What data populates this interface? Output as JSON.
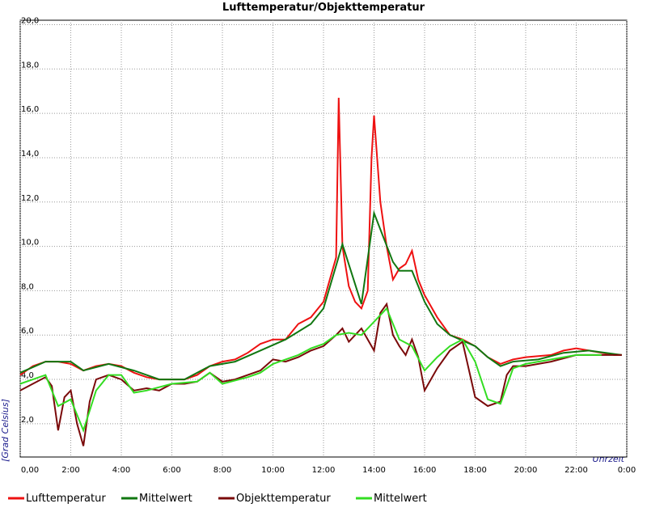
{
  "chart_data": {
    "type": "line",
    "title": "Lufttemperatur/Objekttemperatur",
    "y_label": "[Grad Celsius]",
    "x_label": "Uhrzeit",
    "grid": true,
    "legend": "bottom",
    "xlim": [
      0,
      24
    ],
    "ylim": [
      0.5,
      20.2
    ],
    "xticks": [
      {
        "value": 0,
        "label": "0,00"
      },
      {
        "value": 2,
        "label": "2:00"
      },
      {
        "value": 4,
        "label": "4:00"
      },
      {
        "value": 6,
        "label": "6:00"
      },
      {
        "value": 8,
        "label": "8:00"
      },
      {
        "value": 10,
        "label": "10:00"
      },
      {
        "value": 12,
        "label": "12:00"
      },
      {
        "value": 14,
        "label": "14:00"
      },
      {
        "value": 16,
        "label": "16:00"
      },
      {
        "value": 18,
        "label": "18:00"
      },
      {
        "value": 20,
        "label": "20:00"
      },
      {
        "value": 22,
        "label": "22:00"
      },
      {
        "value": 24,
        "label": "0:00"
      }
    ],
    "yticks": [
      {
        "value": 2,
        "label": "2,0"
      },
      {
        "value": 4,
        "label": "4,0"
      },
      {
        "value": 6,
        "label": "6,0"
      },
      {
        "value": 8,
        "label": "8,0"
      },
      {
        "value": 10,
        "label": "10,0"
      },
      {
        "value": 12,
        "label": "12,0"
      },
      {
        "value": 14,
        "label": "14,0"
      },
      {
        "value": 16,
        "label": "16,0"
      },
      {
        "value": 18,
        "label": "18,0"
      },
      {
        "value": 20,
        "label": "20,0"
      }
    ],
    "series": [
      {
        "name": "Lufttemperatur",
        "color": "#ee1111",
        "x": [
          0,
          0.5,
          1,
          1.5,
          2,
          2.5,
          3,
          3.5,
          4,
          4.5,
          5,
          5.5,
          6,
          6.5,
          7,
          7.5,
          8,
          8.5,
          9,
          9.5,
          10,
          10.5,
          11,
          11.5,
          12,
          12.25,
          12.5,
          12.6,
          12.75,
          13,
          13.25,
          13.5,
          13.75,
          13.9,
          14,
          14.25,
          14.5,
          14.75,
          15,
          15.25,
          15.5,
          15.75,
          16,
          16.5,
          17,
          17.5,
          18,
          18.5,
          19,
          19.5,
          20,
          21,
          21.5,
          22,
          22.5,
          23,
          23.5,
          23.8
        ],
        "values": [
          4.2,
          4.6,
          4.8,
          4.8,
          4.7,
          4.4,
          4.6,
          4.7,
          4.6,
          4.3,
          4.1,
          4.0,
          4.0,
          4.0,
          4.2,
          4.6,
          4.8,
          4.9,
          5.2,
          5.6,
          5.8,
          5.8,
          6.5,
          6.8,
          7.5,
          8.5,
          9.5,
          16.7,
          10.0,
          8.2,
          7.5,
          7.2,
          8.0,
          14.0,
          15.9,
          12.0,
          10.0,
          8.5,
          9.0,
          9.2,
          9.8,
          8.5,
          7.8,
          6.8,
          6.0,
          5.8,
          5.5,
          5.0,
          4.7,
          4.9,
          5.0,
          5.1,
          5.3,
          5.4,
          5.3,
          5.2,
          5.1,
          5.1
        ]
      },
      {
        "name": "Mittelwert",
        "color": "#117711",
        "x": [
          0,
          1,
          2,
          2.5,
          3.5,
          4.5,
          5.5,
          6.5,
          7.5,
          8.5,
          9.5,
          10.5,
          11.5,
          12,
          12.75,
          13.5,
          14,
          14.75,
          15,
          15.5,
          16,
          16.5,
          17,
          18,
          18.5,
          19,
          19.5,
          20.5,
          21.5,
          22.5,
          23.8
        ],
        "values": [
          4.3,
          4.8,
          4.8,
          4.4,
          4.7,
          4.4,
          4.0,
          4.0,
          4.6,
          4.8,
          5.3,
          5.8,
          6.5,
          7.2,
          10.1,
          7.4,
          11.5,
          9.3,
          8.9,
          8.9,
          7.5,
          6.5,
          6.0,
          5.5,
          5.0,
          4.6,
          4.8,
          4.9,
          5.2,
          5.3,
          5.1
        ]
      },
      {
        "name": "Objekttemperatur",
        "color": "#7a0a0a",
        "x": [
          0,
          0.5,
          1,
          1.25,
          1.5,
          1.75,
          2,
          2.25,
          2.5,
          2.75,
          3,
          3.5,
          4,
          4.5,
          5,
          5.5,
          6,
          6.5,
          7,
          7.5,
          8,
          8.5,
          9,
          9.5,
          10,
          10.5,
          11,
          11.5,
          12,
          12.5,
          12.75,
          13,
          13.5,
          14,
          14.25,
          14.5,
          14.75,
          15,
          15.25,
          15.5,
          15.75,
          16,
          16.5,
          17,
          17.5,
          18,
          18.5,
          19,
          19.25,
          19.5,
          20,
          21,
          22,
          23,
          23.8
        ],
        "values": [
          3.5,
          3.8,
          4.1,
          3.7,
          1.7,
          3.2,
          3.5,
          2.0,
          1.0,
          3.0,
          4.0,
          4.2,
          4.0,
          3.5,
          3.6,
          3.5,
          3.8,
          3.8,
          3.9,
          4.3,
          3.9,
          4.0,
          4.2,
          4.4,
          4.9,
          4.8,
          5.0,
          5.3,
          5.5,
          6.0,
          6.3,
          5.7,
          6.3,
          5.3,
          7.0,
          7.4,
          6.0,
          5.5,
          5.1,
          5.8,
          5.0,
          3.5,
          4.5,
          5.3,
          5.7,
          3.2,
          2.8,
          3.0,
          4.2,
          4.6,
          4.6,
          4.8,
          5.1,
          5.1,
          5.1
        ]
      },
      {
        "name": "Mittelwert",
        "color": "#33dd22",
        "x": [
          0,
          1,
          1.5,
          2,
          2.5,
          3,
          3.5,
          4,
          4.5,
          5,
          6,
          7,
          7.5,
          8,
          9,
          9.5,
          10,
          10.5,
          11,
          11.5,
          12,
          12.5,
          13,
          13.5,
          14,
          14.5,
          15,
          15.5,
          16,
          16.5,
          17,
          17.5,
          18,
          18.5,
          19,
          19.5,
          20,
          21,
          22,
          23
        ],
        "values": [
          3.8,
          4.2,
          2.8,
          3.1,
          1.7,
          3.5,
          4.2,
          4.2,
          3.4,
          3.5,
          3.8,
          3.9,
          4.3,
          3.8,
          4.1,
          4.3,
          4.7,
          4.9,
          5.1,
          5.4,
          5.6,
          6.0,
          6.1,
          6.0,
          6.6,
          7.2,
          5.8,
          5.5,
          4.4,
          5.0,
          5.5,
          5.8,
          4.8,
          3.1,
          2.9,
          4.5,
          4.7,
          4.9,
          5.1,
          5.1
        ]
      }
    ]
  }
}
